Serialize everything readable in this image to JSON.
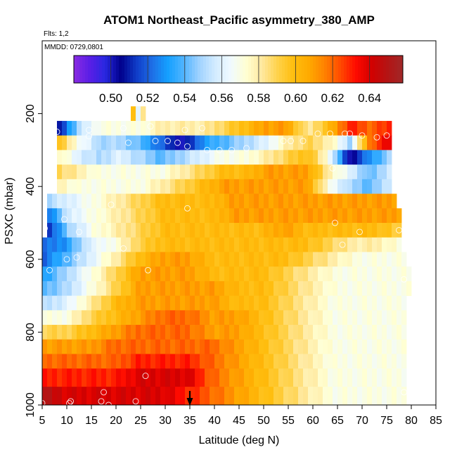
{
  "chart_data": {
    "type": "heatmap",
    "title": "ATOM1 Northeast_Pacific asymmetry_380_AMP",
    "flights_label": "Flts: 1,2",
    "dates_label": "MMDD: 0729,0801",
    "xlabel": "Latitude (deg N)",
    "ylabel": "PSXC (mbar)",
    "xlim": [
      5,
      85
    ],
    "ylim": [
      1000,
      0
    ],
    "x_ticks": [
      "5",
      "10",
      "15",
      "20",
      "25",
      "30",
      "35",
      "40",
      "45",
      "50",
      "55",
      "60",
      "65",
      "70",
      "75",
      "80",
      "85"
    ],
    "y_ticks": [
      "200",
      "400",
      "600",
      "800",
      "1000"
    ],
    "colorbar": {
      "range": [
        0.48,
        0.658
      ],
      "ticks": [
        "0.50",
        "0.52",
        "0.54",
        "0.56",
        "0.58",
        "0.60",
        "0.62",
        "0.64"
      ],
      "colors": [
        "#8a2be2",
        "#5a1ee6",
        "#2828e0",
        "#00008b",
        "#0f3cc8",
        "#1e6ee6",
        "#14a0ff",
        "#50b4ff",
        "#9fd2ff",
        "#d2ebff",
        "#f0faff",
        "#ffffd2",
        "#ffe9a0",
        "#ffd24b",
        "#ffbe0f",
        "#ffaa00",
        "#ff8200",
        "#ff4b00",
        "#ff0a00",
        "#d20000",
        "#b41414",
        "#a02828"
      ]
    },
    "marker": {
      "latitude": 35,
      "label": "down-arrow"
    },
    "layers": [
      {
        "p0": 180,
        "p1": 220,
        "lat0": 23,
        "lat1": 26,
        "base": [
          0.62,
          0.56,
          0.6
        ]
      },
      {
        "p0": 220,
        "p1": 260,
        "lat0": 8,
        "lat1": 76,
        "base": [
          0.5,
          0.55,
          0.57,
          0.57,
          0.57,
          0.58,
          0.58,
          0.58,
          0.59,
          0.6,
          0.61,
          0.61,
          0.58,
          0.6,
          0.63,
          0.62,
          0.63
        ]
      },
      {
        "p0": 260,
        "p1": 300,
        "lat0": 8,
        "lat1": 76,
        "base": [
          0.6,
          0.57,
          0.55,
          0.55,
          0.54,
          0.52,
          0.5,
          0.53,
          0.54,
          0.55,
          0.56,
          0.58,
          0.59,
          0.58,
          0.55,
          0.62,
          0.64
        ]
      },
      {
        "p0": 300,
        "p1": 340,
        "lat0": 8,
        "lat1": 76,
        "base": [
          0.58,
          0.56,
          0.55,
          0.56,
          0.55,
          0.54,
          0.55,
          0.56,
          0.57,
          0.57,
          0.58,
          0.59,
          0.6,
          0.57,
          0.5,
          0.53,
          0.55
        ]
      },
      {
        "p0": 340,
        "p1": 380,
        "lat0": 8,
        "lat1": 76,
        "base": [
          0.59,
          0.58,
          0.57,
          0.57,
          0.57,
          0.57,
          0.58,
          0.59,
          0.6,
          0.6,
          0.61,
          0.61,
          0.61,
          0.58,
          0.56,
          0.54,
          0.56
        ]
      },
      {
        "p0": 380,
        "p1": 420,
        "lat0": 8,
        "lat1": 76,
        "base": [
          0.58,
          0.57,
          0.57,
          0.57,
          0.57,
          0.58,
          0.59,
          0.6,
          0.61,
          0.61,
          0.61,
          0.61,
          0.61,
          0.57,
          0.55,
          0.54,
          0.56
        ]
      },
      {
        "p0": 420,
        "p1": 460,
        "lat0": 6,
        "lat1": 77,
        "base": [
          0.55,
          0.56,
          0.57,
          0.58,
          0.59,
          0.6,
          0.6,
          0.6,
          0.61,
          0.61,
          0.61,
          0.61,
          0.61,
          0.61,
          0.61,
          0.61
        ]
      },
      {
        "p0": 460,
        "p1": 500,
        "lat0": 6,
        "lat1": 78,
        "base": [
          0.52,
          0.56,
          0.57,
          0.58,
          0.59,
          0.6,
          0.6,
          0.6,
          0.61,
          0.61,
          0.61,
          0.61,
          0.61,
          0.61,
          0.61,
          0.61
        ]
      },
      {
        "p0": 500,
        "p1": 540,
        "lat0": 6,
        "lat1": 78,
        "base": [
          0.51,
          0.55,
          0.57,
          0.58,
          0.59,
          0.6,
          0.6,
          0.6,
          0.6,
          0.6,
          0.61,
          0.6,
          0.6,
          0.6,
          0.6,
          0.59
        ]
      },
      {
        "p0": 540,
        "p1": 580,
        "lat0": 5,
        "lat1": 78,
        "base": [
          0.52,
          0.53,
          0.56,
          0.57,
          0.59,
          0.6,
          0.6,
          0.6,
          0.6,
          0.6,
          0.6,
          0.6,
          0.59,
          0.58,
          0.58,
          0.57
        ]
      },
      {
        "p0": 580,
        "p1": 620,
        "lat0": 5,
        "lat1": 79,
        "base": [
          0.52,
          0.54,
          0.56,
          0.58,
          0.6,
          0.61,
          0.61,
          0.6,
          0.6,
          0.6,
          0.6,
          0.59,
          0.58,
          0.57,
          0.57,
          0.57
        ]
      },
      {
        "p0": 620,
        "p1": 660,
        "lat0": 5,
        "lat1": 80,
        "base": [
          0.53,
          0.55,
          0.57,
          0.59,
          0.61,
          0.61,
          0.61,
          0.6,
          0.6,
          0.6,
          0.59,
          0.58,
          0.57,
          0.57,
          0.57,
          0.57
        ]
      },
      {
        "p0": 660,
        "p1": 700,
        "lat0": 5,
        "lat1": 80,
        "base": [
          0.54,
          0.55,
          0.57,
          0.59,
          0.61,
          0.61,
          0.61,
          0.61,
          0.6,
          0.6,
          0.59,
          0.58,
          0.57,
          0.57,
          0.57,
          0.57
        ]
      },
      {
        "p0": 700,
        "p1": 740,
        "lat0": 5,
        "lat1": 79,
        "base": [
          0.55,
          0.56,
          0.58,
          0.6,
          0.61,
          0.61,
          0.61,
          0.61,
          0.6,
          0.6,
          0.59,
          0.58,
          0.57,
          0.57,
          0.57,
          0.57
        ]
      },
      {
        "p0": 740,
        "p1": 780,
        "lat0": 5,
        "lat1": 79,
        "base": [
          0.57,
          0.57,
          0.59,
          0.6,
          0.61,
          0.62,
          0.62,
          0.61,
          0.61,
          0.6,
          0.59,
          0.58,
          0.57,
          0.57,
          0.57,
          0.57
        ]
      },
      {
        "p0": 780,
        "p1": 820,
        "lat0": 5,
        "lat1": 79,
        "base": [
          0.59,
          0.59,
          0.6,
          0.61,
          0.62,
          0.62,
          0.62,
          0.61,
          0.61,
          0.6,
          0.59,
          0.58,
          0.57,
          0.57,
          0.57,
          0.57
        ]
      },
      {
        "p0": 820,
        "p1": 860,
        "lat0": 5,
        "lat1": 79,
        "base": [
          0.61,
          0.61,
          0.61,
          0.62,
          0.62,
          0.62,
          0.62,
          0.62,
          0.61,
          0.6,
          0.59,
          0.58,
          0.57,
          0.57,
          0.57,
          0.57
        ]
      },
      {
        "p0": 860,
        "p1": 900,
        "lat0": 5,
        "lat1": 79,
        "base": [
          0.62,
          0.62,
          0.62,
          0.62,
          0.63,
          0.63,
          0.63,
          0.62,
          0.61,
          0.6,
          0.59,
          0.58,
          0.57,
          0.57,
          0.57,
          0.57
        ]
      },
      {
        "p0": 900,
        "p1": 950,
        "lat0": 5,
        "lat1": 79,
        "base": [
          0.63,
          0.63,
          0.63,
          0.63,
          0.64,
          0.64,
          0.64,
          0.62,
          0.61,
          0.6,
          0.59,
          0.58,
          0.57,
          0.57,
          0.57,
          0.57
        ]
      },
      {
        "p0": 950,
        "p1": 1000,
        "lat0": 5,
        "lat1": 79,
        "base": [
          0.65,
          0.64,
          0.64,
          0.64,
          0.64,
          0.64,
          0.63,
          0.62,
          0.61,
          0.6,
          0.59,
          0.58,
          0.57,
          0.57,
          0.57,
          0.57
        ]
      }
    ],
    "observations": [
      [
        8,
        250
      ],
      [
        14.5,
        245
      ],
      [
        14.5,
        262
      ],
      [
        21.5,
        240
      ],
      [
        22.5,
        280
      ],
      [
        27,
        235
      ],
      [
        28,
        275
      ],
      [
        30.5,
        275
      ],
      [
        32.5,
        280
      ],
      [
        34.5,
        290
      ],
      [
        38.5,
        300
      ],
      [
        41,
        300
      ],
      [
        43.5,
        300
      ],
      [
        46.5,
        295
      ],
      [
        54,
        275
      ],
      [
        55.5,
        275
      ],
      [
        58,
        275
      ],
      [
        61,
        255
      ],
      [
        63.5,
        255
      ],
      [
        66.5,
        255
      ],
      [
        67.5,
        255
      ],
      [
        70,
        260
      ],
      [
        73,
        265
      ],
      [
        75,
        260
      ],
      [
        37.5,
        240
      ],
      [
        34,
        245
      ],
      [
        64,
        350
      ],
      [
        19,
        450
      ],
      [
        34.5,
        460
      ],
      [
        9.5,
        490
      ],
      [
        64.5,
        500
      ],
      [
        5.5,
        515
      ],
      [
        12.5,
        525
      ],
      [
        69.5,
        525
      ],
      [
        77.5,
        520
      ],
      [
        66,
        560
      ],
      [
        6.5,
        630
      ],
      [
        12,
        595
      ],
      [
        10,
        600
      ],
      [
        21.5,
        570
      ],
      [
        26.5,
        630
      ],
      [
        78.5,
        655
      ],
      [
        26,
        920
      ],
      [
        24,
        990
      ],
      [
        17.5,
        965
      ],
      [
        17,
        990
      ],
      [
        18.5,
        1000
      ],
      [
        10.5,
        995
      ],
      [
        10.8,
        990
      ],
      [
        5,
        995
      ],
      [
        78.5,
        965
      ]
    ]
  }
}
